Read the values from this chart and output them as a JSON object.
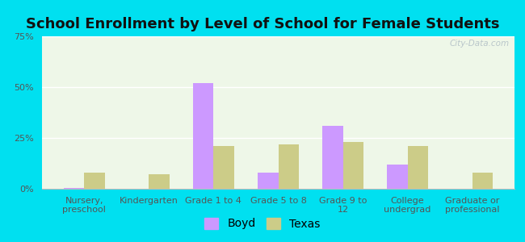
{
  "title": "School Enrollment by Level of School for Female Students",
  "categories": [
    "Nursery,\npreschool",
    "Kindergarten",
    "Grade 1 to 4",
    "Grade 5 to 8",
    "Grade 9 to\n12",
    "College\nundergrad",
    "Graduate or\nprofessional"
  ],
  "boyd_values": [
    0.5,
    0.0,
    52.0,
    8.0,
    31.0,
    12.0,
    0.0
  ],
  "texas_values": [
    8.0,
    7.0,
    21.0,
    22.0,
    23.0,
    21.0,
    8.0
  ],
  "boyd_color": "#cc99ff",
  "texas_color": "#cccc88",
  "background_outer": "#00e0f0",
  "background_inner": "#eef7e8",
  "ylim": [
    0,
    75
  ],
  "yticks": [
    0,
    25,
    50,
    75
  ],
  "ytick_labels": [
    "0%",
    "25%",
    "50%",
    "75%"
  ],
  "legend_boyd": "Boyd",
  "legend_texas": "Texas",
  "watermark": "City-Data.com",
  "title_fontsize": 13,
  "tick_fontsize": 8,
  "legend_fontsize": 10
}
